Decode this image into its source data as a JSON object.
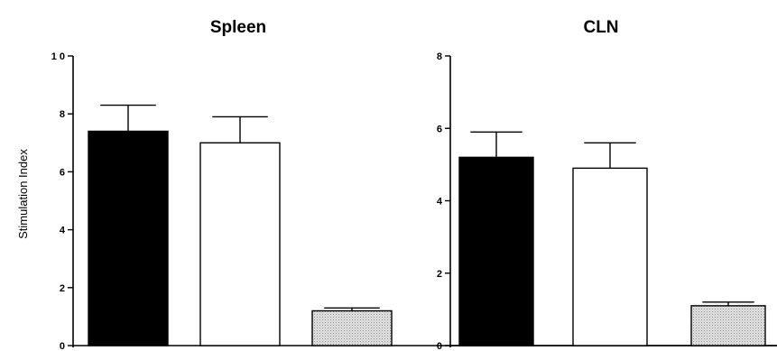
{
  "chart_data": [
    {
      "type": "bar",
      "title": "Spleen",
      "ylabel": "Stimulation Index",
      "ylim": [
        0,
        10
      ],
      "yticks": [
        "0",
        "2",
        "4",
        "6",
        "8",
        "1 0"
      ],
      "grid": false,
      "bars": [
        {
          "value": 7.4,
          "error": 0.9,
          "fill": "#000000"
        },
        {
          "value": 7.0,
          "error": 0.9,
          "fill": "#ffffff"
        },
        {
          "value": 1.2,
          "error": 0.1,
          "fill": "#d4d4d4"
        }
      ]
    },
    {
      "type": "bar",
      "title": "CLN",
      "ylabel": "",
      "ylim": [
        0,
        8
      ],
      "yticks": [
        "0",
        "2",
        "4",
        "6",
        "8"
      ],
      "grid": false,
      "bars": [
        {
          "value": 5.2,
          "error": 0.7,
          "fill": "#000000"
        },
        {
          "value": 4.9,
          "error": 0.7,
          "fill": "#ffffff"
        },
        {
          "value": 1.1,
          "error": 0.1,
          "fill": "#d4d4d4"
        }
      ]
    }
  ]
}
